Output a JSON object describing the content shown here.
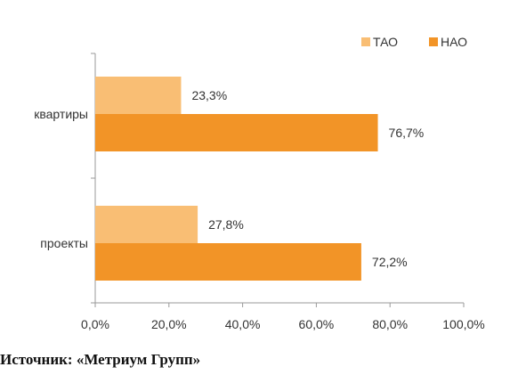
{
  "chart_data": {
    "type": "bar",
    "orientation": "horizontal",
    "categories": [
      "квартиры",
      "проекты"
    ],
    "series": [
      {
        "name": "ТАО",
        "values": [
          23.3,
          27.8
        ],
        "labels": [
          "23,3%",
          "27,8%"
        ],
        "color": "#F9BE74"
      },
      {
        "name": "НАО",
        "values": [
          76.7,
          72.2
        ],
        "labels": [
          "76,7%",
          "72,2%"
        ],
        "color": "#F29427"
      }
    ],
    "xlim": [
      0,
      100
    ],
    "ticks": [
      0,
      20,
      40,
      60,
      80,
      100
    ],
    "tick_labels": [
      "0,0%",
      "20,0%",
      "40,0%",
      "60,0%",
      "80,0%",
      "100,0%"
    ],
    "grid": false,
    "legend_position": "top-right"
  },
  "source": "Источник: «Метриум Групп»"
}
